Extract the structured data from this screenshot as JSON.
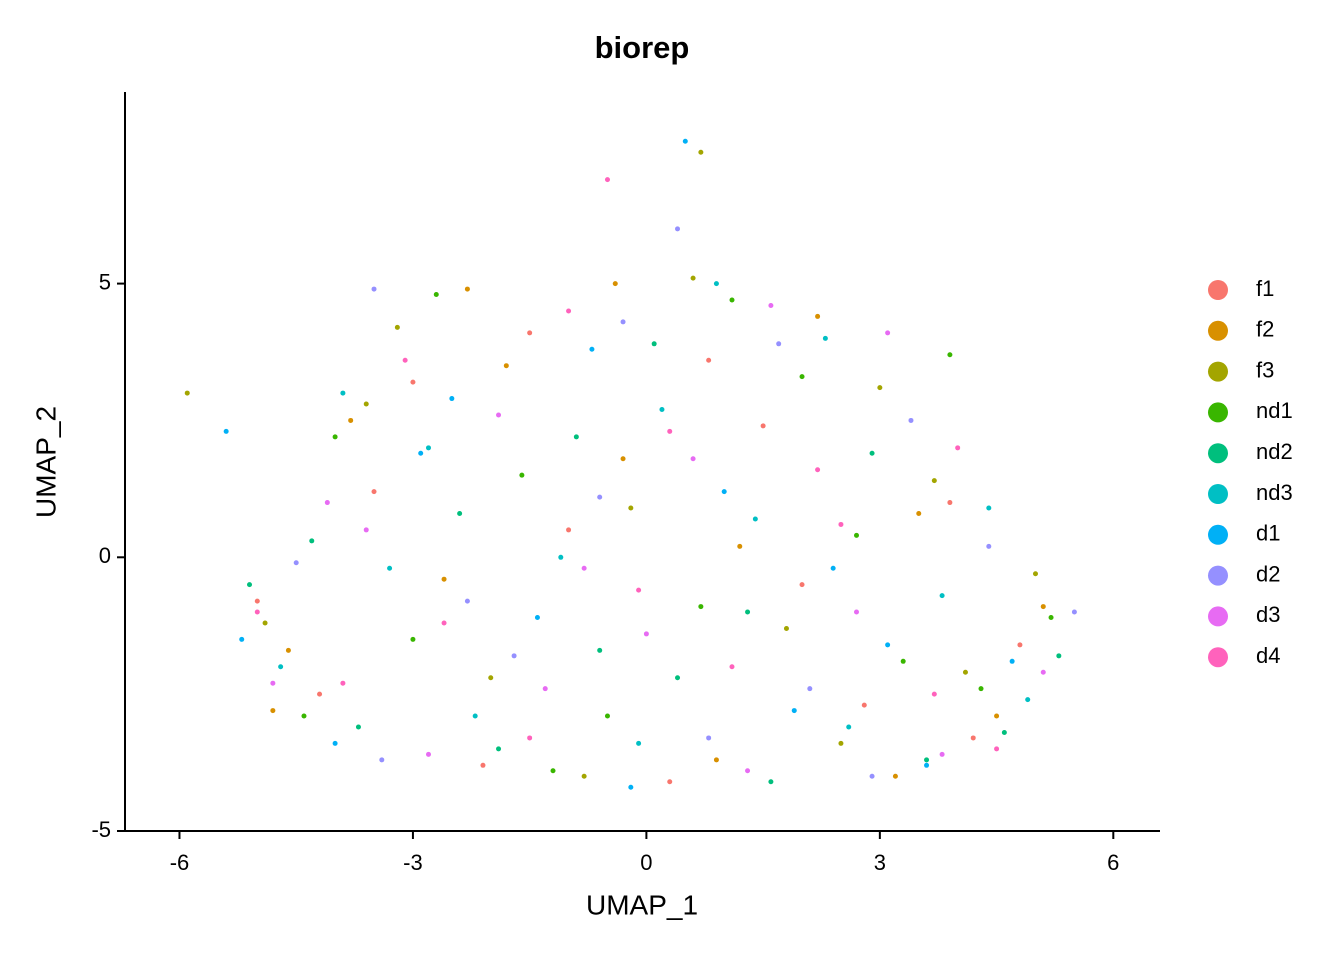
{
  "chart_data": {
    "type": "scatter",
    "title": "biorep",
    "x_label": "UMAP_1",
    "y_label": "UMAP_2",
    "xlim": [
      -6.7,
      6.6
    ],
    "ylim": [
      -5.0,
      8.5
    ],
    "xticks": [
      -6,
      -3,
      0,
      3,
      6
    ],
    "yticks": [
      -5,
      0,
      5
    ],
    "series": [
      {
        "name": "f1",
        "color": "#F8766D",
        "x": [
          -5.0,
          -4.2,
          -3.5,
          -2.1,
          -1.0,
          0.3,
          1.5,
          2.8,
          3.9,
          4.8,
          -1.5,
          0.8,
          2.0,
          -3.0,
          4.2
        ],
        "y": [
          -0.8,
          -2.5,
          1.2,
          -3.8,
          0.5,
          -4.1,
          2.4,
          -2.7,
          1.0,
          -1.6,
          4.1,
          3.6,
          -0.5,
          3.2,
          -3.3
        ]
      },
      {
        "name": "f2",
        "color": "#D89000",
        "x": [
          -4.6,
          -3.8,
          -2.6,
          -1.8,
          -0.4,
          0.9,
          2.2,
          3.5,
          4.5,
          5.1,
          -0.3,
          3.2,
          -2.3,
          1.2,
          -4.8
        ],
        "y": [
          -1.7,
          2.5,
          -0.4,
          3.5,
          5.0,
          -3.7,
          4.4,
          0.8,
          -2.9,
          -0.9,
          1.8,
          -4.0,
          4.9,
          0.2,
          -2.8
        ]
      },
      {
        "name": "f3",
        "color": "#A3A500",
        "x": [
          -4.9,
          -3.2,
          -2.0,
          -0.8,
          0.6,
          1.8,
          3.0,
          4.1,
          5.0,
          -3.6,
          -0.2,
          2.5,
          -5.9,
          0.7,
          3.7
        ],
        "y": [
          -1.2,
          4.2,
          -2.2,
          -4.0,
          5.1,
          -1.3,
          3.1,
          -2.1,
          -0.3,
          2.8,
          0.9,
          -3.4,
          3.0,
          7.4,
          1.4
        ]
      },
      {
        "name": "nd1",
        "color": "#39B600",
        "x": [
          -4.4,
          -3.0,
          -1.6,
          -0.5,
          0.7,
          2.0,
          3.3,
          4.3,
          5.2,
          -2.7,
          1.1,
          3.9,
          -4.0,
          -1.2,
          2.7
        ],
        "y": [
          -2.9,
          -1.5,
          1.5,
          -2.9,
          -0.9,
          3.3,
          -1.9,
          -2.4,
          -1.1,
          4.8,
          4.7,
          3.7,
          2.2,
          -3.9,
          0.4
        ]
      },
      {
        "name": "nd2",
        "color": "#00BF7D",
        "x": [
          -5.1,
          -3.7,
          -2.4,
          -0.9,
          0.4,
          1.6,
          2.9,
          4.6,
          -1.9,
          0.1,
          3.6,
          -4.3,
          5.3,
          1.3,
          -0.6
        ],
        "y": [
          -0.5,
          -3.1,
          0.8,
          2.2,
          -2.2,
          -4.1,
          1.9,
          -3.2,
          -3.5,
          3.9,
          -3.7,
          0.3,
          -1.8,
          -1.0,
          -1.7
        ]
      },
      {
        "name": "nd3",
        "color": "#00BFC4",
        "x": [
          -4.7,
          -3.3,
          -2.2,
          -1.1,
          0.2,
          1.4,
          2.6,
          3.8,
          4.9,
          -0.1,
          2.3,
          -3.9,
          0.9,
          -2.8,
          4.4
        ],
        "y": [
          -2.0,
          -0.2,
          -2.9,
          0.0,
          2.7,
          0.7,
          -3.1,
          -0.7,
          -2.6,
          -3.4,
          4.0,
          3.0,
          5.0,
          2.0,
          0.9
        ]
      },
      {
        "name": "d1",
        "color": "#00B0F6",
        "x": [
          -5.2,
          -4.0,
          -2.9,
          -1.4,
          -0.2,
          1.0,
          2.4,
          3.6,
          4.7,
          -2.5,
          0.5,
          3.1,
          -5.4,
          1.9,
          -0.7
        ],
        "y": [
          -1.5,
          -3.4,
          1.9,
          -1.1,
          -4.2,
          1.2,
          -0.2,
          -3.8,
          -1.9,
          2.9,
          7.6,
          -1.6,
          2.3,
          -2.8,
          3.8
        ]
      },
      {
        "name": "d2",
        "color": "#9590FF",
        "x": [
          -4.5,
          -3.4,
          -1.7,
          -0.6,
          0.8,
          2.1,
          3.4,
          4.4,
          5.5,
          -2.3,
          -0.3,
          1.7,
          -3.5,
          0.4,
          2.9
        ],
        "y": [
          -0.1,
          -3.7,
          -1.8,
          1.1,
          -3.3,
          -2.4,
          2.5,
          0.2,
          -1.0,
          -0.8,
          4.3,
          3.9,
          4.9,
          6.0,
          -4.0
        ]
      },
      {
        "name": "d3",
        "color": "#E76BF3",
        "x": [
          -4.8,
          -3.6,
          -2.8,
          -1.3,
          0.0,
          1.3,
          2.7,
          3.8,
          5.1,
          -1.9,
          0.6,
          -4.1,
          3.1,
          -0.8,
          1.6
        ],
        "y": [
          -2.3,
          0.5,
          -3.6,
          -2.4,
          -1.4,
          -3.9,
          -1.0,
          -3.6,
          -2.1,
          2.6,
          1.8,
          1.0,
          4.1,
          -0.2,
          4.6
        ]
      },
      {
        "name": "d4",
        "color": "#FF62BC",
        "x": [
          -5.0,
          -3.9,
          -2.6,
          -1.5,
          -0.1,
          1.1,
          2.5,
          3.7,
          4.5,
          -3.1,
          0.3,
          2.2,
          -1.0,
          4.0,
          -0.5
        ],
        "y": [
          -1.0,
          -2.3,
          -1.2,
          -3.3,
          -0.6,
          -2.0,
          0.6,
          -2.5,
          -3.5,
          3.6,
          2.3,
          1.6,
          4.5,
          2.0,
          6.9
        ]
      }
    ]
  }
}
